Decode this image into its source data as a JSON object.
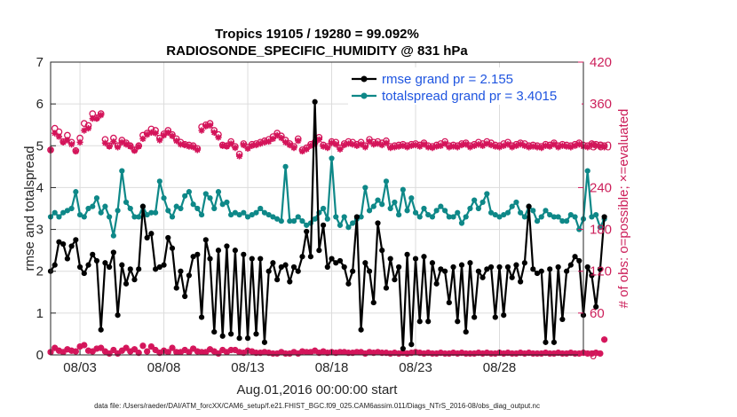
{
  "chart_data": {
    "type": "line",
    "title": "Tropics 19105 / 19280 = 99.092%",
    "subtitle": "RADIOSONDE_SPECIFIC_HUMIDITY @ 831 hPa",
    "xlabel": "Aug.01,2016 00:00:00 start",
    "ylabel": "rmse and totalspread",
    "ylabel_right": "# of obs: o=possible; ×=evaluated",
    "footer": "data file: /Users/raeder/DAI/ATM_forcXX/CAM6_setup/f.e21.FHIST_BGC.f09_025.CAM6assim.011/Diags_NTrS_2016-08/obs_diag_output.nc",
    "xlim": [
      1.25,
      33.0
    ],
    "ylim": [
      0,
      7
    ],
    "ylim_right": [
      0,
      420
    ],
    "x_ticks": [
      3,
      8,
      13,
      18,
      23,
      28
    ],
    "x_tick_labels": [
      "08/03",
      "08/08",
      "08/13",
      "08/18",
      "08/23",
      "08/28"
    ],
    "y_ticks": [
      0,
      1,
      2,
      3,
      4,
      5,
      6,
      7
    ],
    "y_tick_labels": [
      "0",
      "1",
      "2",
      "3",
      "4",
      "5",
      "6",
      "7"
    ],
    "y_ticks_right": [
      0,
      60,
      120,
      180,
      240,
      300,
      360,
      420
    ],
    "y_tick_labels_right": [
      "0",
      "60",
      "120",
      "180",
      "240",
      "300",
      "360",
      "420"
    ],
    "legend": {
      "position": "top-right",
      "entries": [
        "rmse grand pr = 2.155",
        "totalspread grand pr = 3.4015"
      ]
    },
    "colors": {
      "rmse": "#000000",
      "totalspread": "#0e8888",
      "obs": "#d4145a",
      "axis": "#262626"
    },
    "x_start": 1.25,
    "x_step": 0.25,
    "series": [
      {
        "name": "rmse",
        "values": [
          2.0,
          2.15,
          2.7,
          2.65,
          2.3,
          2.6,
          2.75,
          2.1,
          1.95,
          2.15,
          2.4,
          2.25,
          0.6,
          2.2,
          2.1,
          2.45,
          0.95,
          2.15,
          1.7,
          2.05,
          1.8,
          2.05,
          3.55,
          2.8,
          2.9,
          2.05,
          2.1,
          2.15,
          2.8,
          2.55,
          1.6,
          2.0,
          1.4,
          1.9,
          2.35,
          2.4,
          0.9,
          2.75,
          2.3,
          0.55,
          2.5,
          0.45,
          2.6,
          0.5,
          2.5,
          0.4,
          2.4,
          0.4,
          2.3,
          0.5,
          2.3,
          0.3,
          2.0,
          2.2,
          1.8,
          2.1,
          2.15,
          1.75,
          2.1,
          2.0,
          2.35,
          2.95,
          2.35,
          6.05,
          2.5,
          3.1,
          2.1,
          2.3,
          2.2,
          2.25,
          2.1,
          1.7,
          2.0,
          3.3,
          0.6,
          2.2,
          2.0,
          1.25,
          3.15,
          2.5,
          1.6,
          2.3,
          1.8,
          2.1,
          0.15,
          2.4,
          0.25,
          2.3,
          0.8,
          2.35,
          0.8,
          2.2,
          1.7,
          2.05,
          2.0,
          1.25,
          2.1,
          0.8,
          2.15,
          0.55,
          2.2,
          0.9,
          2.0,
          1.85,
          2.05,
          2.1,
          0.9,
          2.1,
          0.95,
          2.1,
          1.85,
          2.15,
          1.75,
          2.2,
          3.55,
          2.05,
          1.95,
          2.0,
          0.3,
          2.05,
          0.3,
          2.1,
          0.85,
          2.0,
          2.15,
          2.35,
          2.25,
          0.95,
          2.1,
          1.9,
          1.15,
          2.05,
          3.3
        ]
      },
      {
        "name": "totalspread",
        "values": [
          3.3,
          3.4,
          3.3,
          3.4,
          3.45,
          3.5,
          3.9,
          3.35,
          3.3,
          3.5,
          3.55,
          3.75,
          3.4,
          3.55,
          3.3,
          2.85,
          3.45,
          4.4,
          3.65,
          3.5,
          3.3,
          3.3,
          3.55,
          3.35,
          3.4,
          3.4,
          4.15,
          3.75,
          3.45,
          3.3,
          3.55,
          3.5,
          3.8,
          3.9,
          3.6,
          3.5,
          3.35,
          3.85,
          3.75,
          3.5,
          3.9,
          3.6,
          3.65,
          3.35,
          3.4,
          3.35,
          3.4,
          3.3,
          3.35,
          3.4,
          3.5,
          3.4,
          3.35,
          3.3,
          3.25,
          3.2,
          4.5,
          3.2,
          3.2,
          3.3,
          3.2,
          3.1,
          3.15,
          3.25,
          3.4,
          3.5,
          3.25,
          4.7,
          3.3,
          3.1,
          3.3,
          3.05,
          3.15,
          3.25,
          3.3,
          4.0,
          3.45,
          3.55,
          3.7,
          3.6,
          4.15,
          3.5,
          3.65,
          3.35,
          3.95,
          3.45,
          3.75,
          3.4,
          3.3,
          3.5,
          3.35,
          3.3,
          3.45,
          3.55,
          3.45,
          3.3,
          3.3,
          3.4,
          3.15,
          3.3,
          3.5,
          3.7,
          3.5,
          3.65,
          3.85,
          3.4,
          3.35,
          3.3,
          3.35,
          3.4,
          3.55,
          3.65,
          3.4,
          3.3,
          3.55,
          3.45,
          3.2,
          3.3,
          3.45,
          3.35,
          3.3,
          3.3,
          3.2,
          3.2,
          3.35,
          3.3,
          3.0,
          3.25,
          4.4,
          3.3,
          3.35,
          3.05,
          3.25
        ]
      },
      {
        "name": "obs_possible",
        "values": [
          294,
          325,
          320,
          306,
          315,
          305,
          293,
          311,
          332,
          329,
          346,
          340,
          346,
          309,
          300,
          311,
          300,
          308,
          304,
          300,
          294,
          300,
          315,
          318,
          324,
          322,
          311,
          317,
          322,
          316,
          310,
          305,
          302,
          301,
          300,
          296,
          327,
          330,
          332,
          322,
          316,
          301,
          300,
          306,
          299,
          288,
          303,
          298,
          302,
          303,
          305,
          307,
          309,
          313,
          318,
          314,
          308,
          303,
          299,
          310,
          294,
          297,
          302,
          305,
          312,
          301,
          299,
          306,
          305,
          297,
          303,
          306,
          305,
          302,
          305,
          300,
          309,
          305,
          306,
          304,
          307,
          299,
          300,
          301,
          302,
          300,
          302,
          303,
          301,
          304,
          300,
          299,
          301,
          303,
          306,
          300,
          301,
          300,
          303,
          304,
          300,
          302,
          305,
          303,
          306,
          304,
          301,
          300,
          303,
          305,
          300,
          302,
          304,
          303,
          300,
          301,
          300,
          299,
          302,
          301,
          304,
          300,
          302,
          301,
          300,
          302,
          304,
          301,
          300,
          303,
          302,
          301,
          300
        ]
      },
      {
        "name": "obs_evaluated",
        "values": [
          294,
          318,
          313,
          305,
          308,
          302,
          292,
          305,
          322,
          325,
          339,
          339,
          344,
          304,
          299,
          306,
          298,
          305,
          302,
          299,
          293,
          299,
          310,
          316,
          319,
          318,
          308,
          315,
          319,
          314,
          307,
          302,
          301,
          299,
          298,
          294,
          322,
          328,
          329,
          319,
          312,
          300,
          299,
          303,
          297,
          285,
          301,
          296,
          300,
          301,
          303,
          305,
          306,
          310,
          315,
          311,
          305,
          301,
          297,
          307,
          292,
          295,
          300,
          303,
          309,
          299,
          297,
          304,
          302,
          295,
          301,
          303,
          302,
          300,
          302,
          298,
          306,
          302,
          303,
          301,
          304,
          297,
          298,
          299,
          300,
          298,
          300,
          301,
          299,
          302,
          298,
          297,
          299,
          300,
          303,
          298,
          299,
          298,
          301,
          302,
          298,
          300,
          302,
          300,
          303,
          301,
          299,
          298,
          300,
          302,
          298,
          300,
          302,
          300,
          298,
          299,
          298,
          297,
          300,
          299,
          302,
          298,
          300,
          299,
          298,
          300,
          302,
          299,
          298,
          301,
          300,
          299,
          298
        ]
      },
      {
        "name": "obs_bottom",
        "values": [
          4,
          10,
          6,
          4,
          8,
          6,
          5,
          12,
          14,
          6,
          5,
          9,
          10,
          5,
          2,
          7,
          2,
          6,
          10,
          5,
          8,
          3,
          13,
          5,
          12,
          7,
          3,
          6,
          4,
          10,
          4,
          4,
          7,
          4,
          9,
          5,
          4,
          4,
          8,
          5,
          2,
          7,
          4,
          7,
          7,
          4,
          3,
          6,
          5,
          3,
          3,
          4,
          3,
          2,
          2,
          4,
          2,
          2,
          4,
          2,
          5,
          4,
          4,
          6,
          3,
          5,
          3,
          4,
          3,
          4,
          4,
          3,
          3,
          4,
          4,
          2,
          4,
          3,
          4,
          3,
          3,
          2,
          3,
          2,
          3,
          2,
          3,
          4,
          3,
          2,
          3,
          2,
          2,
          3,
          2,
          2,
          3,
          2,
          3,
          2,
          2,
          2,
          3,
          2,
          3,
          2,
          2,
          3,
          2,
          3,
          2,
          2,
          3,
          2,
          3,
          2,
          2,
          2,
          3,
          2,
          2,
          3,
          2,
          2,
          3,
          2,
          2,
          3,
          2,
          2,
          3,
          2,
          22
        ]
      }
    ]
  }
}
